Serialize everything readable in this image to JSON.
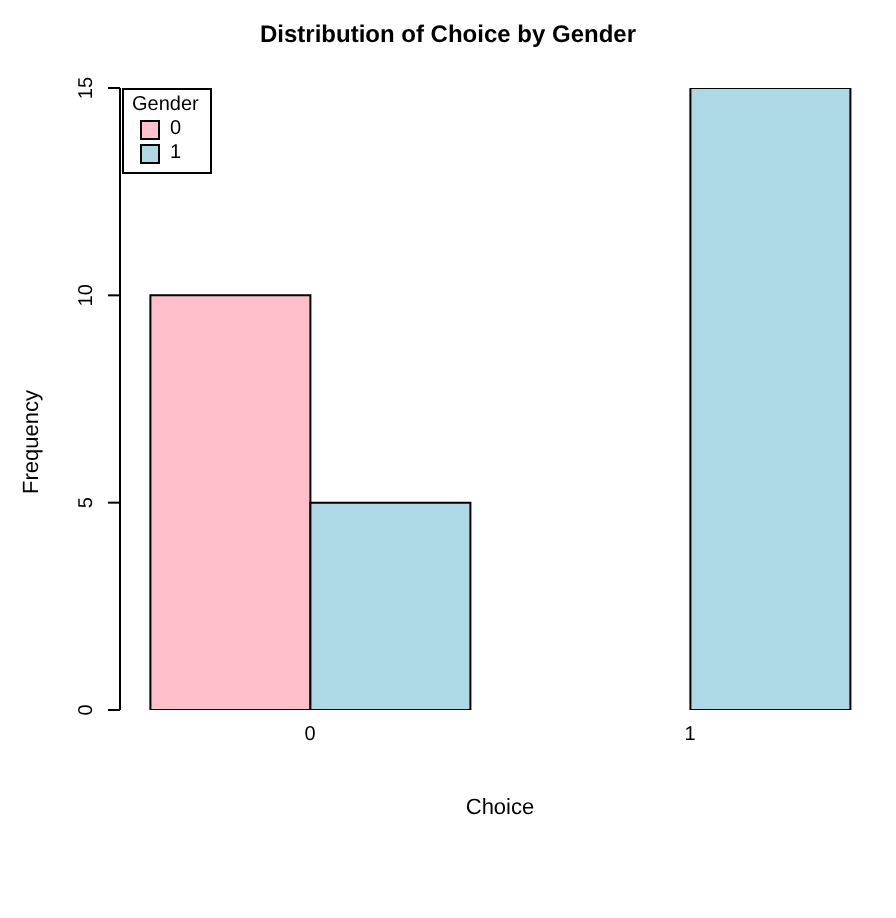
{
  "chart_data": {
    "type": "bar",
    "title": "Distribution of Choice by Gender",
    "xlabel": "Choice",
    "ylabel": "Frequency",
    "legend_title": "Gender",
    "categories": [
      "0",
      "1"
    ],
    "series": [
      {
        "name": "0",
        "color": "#ffc0cb",
        "values": [
          10,
          0
        ]
      },
      {
        "name": "1",
        "color": "#add8e6",
        "values": [
          5,
          15
        ]
      }
    ],
    "ylim": [
      0,
      15
    ],
    "yticks": [
      0,
      5,
      10,
      15
    ],
    "grid": false,
    "legend": "top left"
  }
}
